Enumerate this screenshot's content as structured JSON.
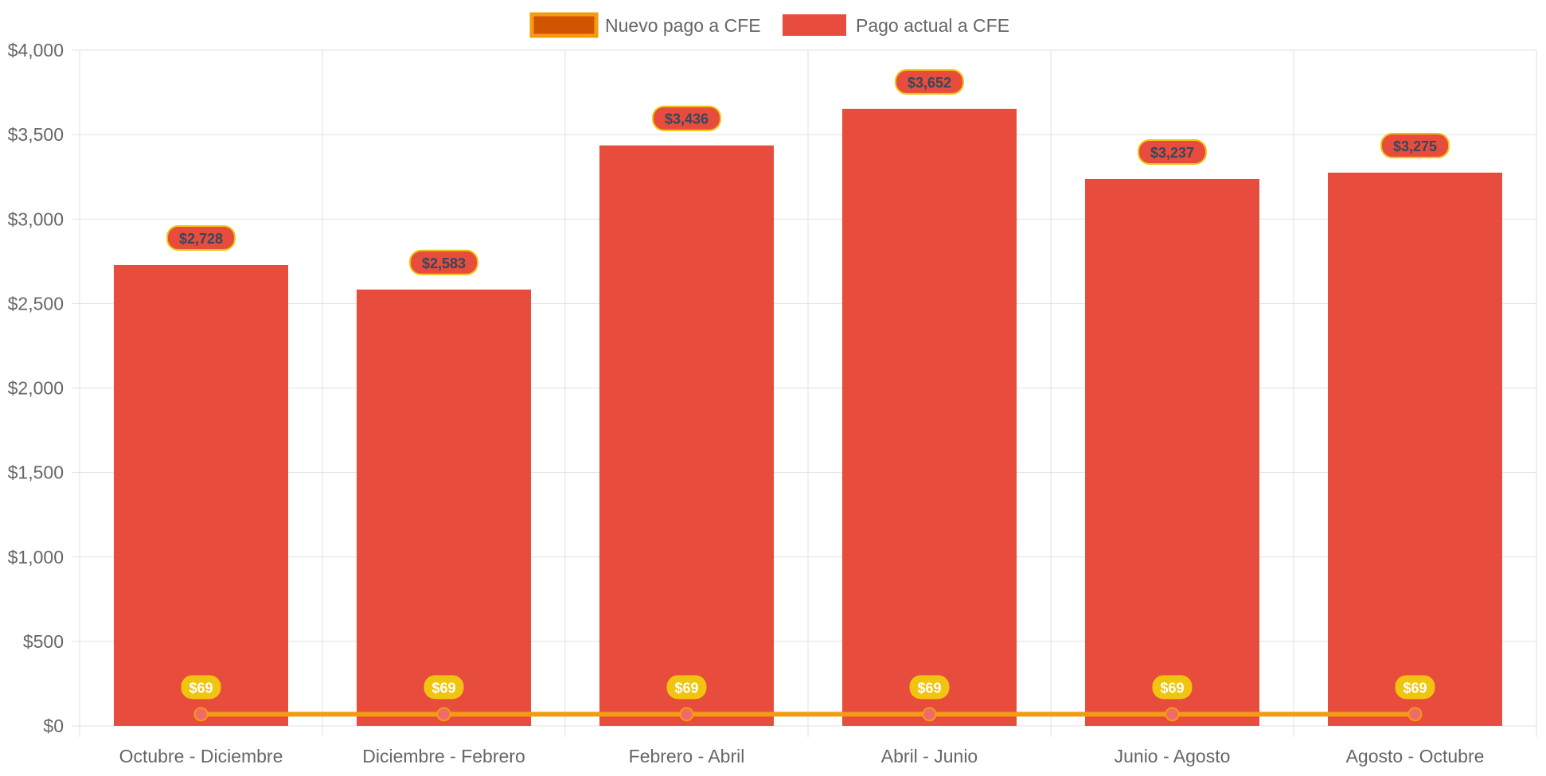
{
  "chart_data": {
    "type": "bar",
    "categories": [
      "Octubre - Diciembre",
      "Diciembre - Febrero",
      "Febrero - Abril",
      "Abril - Junio",
      "Junio - Agosto",
      "Agosto - Octubre"
    ],
    "series": [
      {
        "name": "Pago actual a CFE",
        "type": "bar",
        "values": [
          2728,
          2583,
          3436,
          3652,
          3237,
          3275
        ],
        "data_labels": [
          "$2,728",
          "$2,583",
          "$3,436",
          "$3,652",
          "$3,237",
          "$3,275"
        ],
        "color": "#e74c3c"
      },
      {
        "name": "Nuevo pago a CFE",
        "type": "line",
        "values": [
          69,
          69,
          69,
          69,
          69,
          69
        ],
        "data_labels": [
          "$69",
          "$69",
          "$69",
          "$69",
          "$69",
          "$69"
        ],
        "color": "#f39c12",
        "fill_color": "#d35400"
      }
    ],
    "legend": [
      "Nuevo pago a CFE",
      "Pago actual a CFE"
    ],
    "legend_position": "top",
    "y_ticks": [
      "$0",
      "$500",
      "$1,000",
      "$1,500",
      "$2,000",
      "$2,500",
      "$3,000",
      "$3,500",
      "$4,000"
    ],
    "ylim": [
      0,
      4000
    ],
    "grid": true,
    "title": "",
    "xlabel": "",
    "ylabel": ""
  },
  "colors": {
    "bar": "#e74c3c",
    "line": "#f39c12",
    "line_fill": "#d35400",
    "label_bg": "#f1c40f",
    "bar_label_bg": "#e74c3c",
    "bar_label_border": "#f1c40f",
    "bar_label_text": "#34495e",
    "line_label_text": "#ffffff",
    "point_fill": "#f06a6a",
    "grid": "#e1e1e1",
    "axis_text": "#666666"
  }
}
